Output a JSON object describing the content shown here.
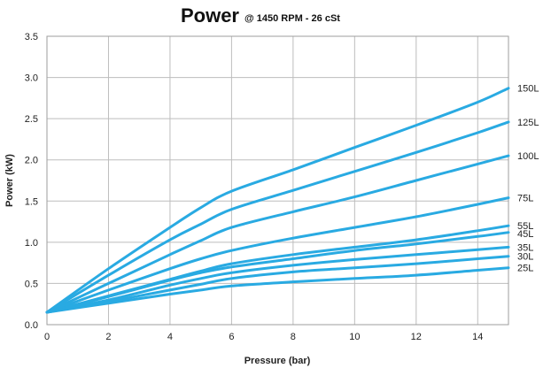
{
  "chart_data": {
    "type": "line",
    "title": "Power",
    "subtitle": "@ 1450 RPM - 26 cSt",
    "xlabel": "Pressure (bar)",
    "ylabel": "Power (kW)",
    "xlim": [
      0,
      15
    ],
    "ylim": [
      0,
      3.5
    ],
    "xticks": [
      "0",
      "2",
      "4",
      "6",
      "8",
      "10",
      "12",
      "14"
    ],
    "yticks": [
      "0.0",
      "0.5",
      "1.0",
      "1.5",
      "2.0",
      "2.5",
      "3.0",
      "3.5"
    ],
    "grid": true,
    "line_color": "#29aae2",
    "series": [
      {
        "name": "150L",
        "x": [
          0,
          2,
          4,
          5,
          6,
          8,
          10,
          12,
          14,
          15
        ],
        "y": [
          0.15,
          0.68,
          1.18,
          1.42,
          1.62,
          1.88,
          2.15,
          2.42,
          2.7,
          2.87
        ]
      },
      {
        "name": "125L",
        "x": [
          0,
          2,
          4,
          5,
          6,
          8,
          10,
          12,
          14,
          15
        ],
        "y": [
          0.15,
          0.6,
          1.03,
          1.22,
          1.4,
          1.63,
          1.86,
          2.09,
          2.33,
          2.46
        ]
      },
      {
        "name": "100L",
        "x": [
          0,
          2,
          4,
          5,
          6,
          8,
          10,
          12,
          14,
          15
        ],
        "y": [
          0.15,
          0.5,
          0.85,
          1.02,
          1.18,
          1.37,
          1.55,
          1.75,
          1.95,
          2.05
        ]
      },
      {
        "name": "75L",
        "x": [
          0,
          2,
          4,
          5,
          6,
          8,
          10,
          12,
          14,
          15
        ],
        "y": [
          0.15,
          0.42,
          0.68,
          0.8,
          0.9,
          1.05,
          1.18,
          1.31,
          1.46,
          1.54
        ]
      },
      {
        "name": "55L",
        "x": [
          0,
          2,
          4,
          5,
          6,
          8,
          10,
          12,
          14,
          15
        ],
        "y": [
          0.15,
          0.35,
          0.55,
          0.65,
          0.74,
          0.85,
          0.94,
          1.03,
          1.14,
          1.2
        ]
      },
      {
        "name": "45L",
        "x": [
          0,
          2,
          4,
          5,
          6,
          8,
          10,
          12,
          14,
          15
        ],
        "y": [
          0.15,
          0.34,
          0.54,
          0.63,
          0.7,
          0.8,
          0.9,
          0.98,
          1.07,
          1.12
        ]
      },
      {
        "name": "35L",
        "x": [
          0,
          2,
          4,
          5,
          6,
          8,
          10,
          12,
          14,
          15
        ],
        "y": [
          0.15,
          0.3,
          0.48,
          0.56,
          0.63,
          0.72,
          0.79,
          0.85,
          0.91,
          0.94
        ]
      },
      {
        "name": "30L",
        "x": [
          0,
          2,
          4,
          5,
          6,
          8,
          10,
          12,
          14,
          15
        ],
        "y": [
          0.15,
          0.28,
          0.42,
          0.49,
          0.56,
          0.64,
          0.69,
          0.74,
          0.8,
          0.83
        ]
      },
      {
        "name": "25L",
        "x": [
          0,
          2,
          4,
          5,
          6,
          8,
          10,
          12,
          14,
          15
        ],
        "y": [
          0.15,
          0.26,
          0.37,
          0.42,
          0.47,
          0.52,
          0.56,
          0.6,
          0.66,
          0.69
        ]
      }
    ]
  }
}
